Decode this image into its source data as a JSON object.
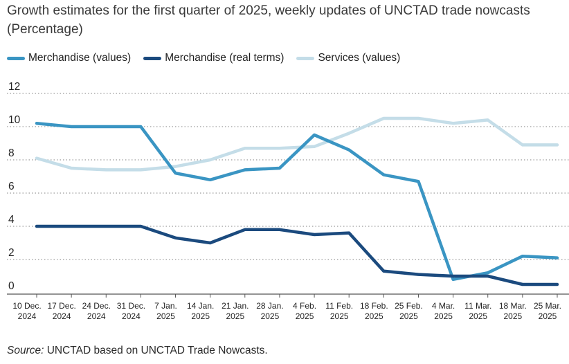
{
  "colors": {
    "merch_values": "#3a95c3",
    "merch_real": "#1b4a7e",
    "services": "#c4dde8",
    "grid": "#9a9a9a",
    "axis": "#555555",
    "text": "#222222"
  },
  "source": {
    "label": "Source:",
    "text": " UNCTAD based on UNCTAD Trade Nowcasts."
  },
  "chart_data": {
    "type": "line",
    "title": "Growth estimates for the first quarter of 2025, weekly updates of UNCTAD trade nowcasts (Percentage)",
    "categories": [
      [
        "10 Dec.",
        "2024"
      ],
      [
        "17 Dec.",
        "2024"
      ],
      [
        "24 Dec.",
        "2024"
      ],
      [
        "31 Dec.",
        "2024"
      ],
      [
        "7 Jan.",
        "2025"
      ],
      [
        "14 Jan.",
        "2025"
      ],
      [
        "21 Jan.",
        "2025"
      ],
      [
        "28 Jan.",
        "2025"
      ],
      [
        "4 Feb.",
        "2025"
      ],
      [
        "11 Feb.",
        "2025"
      ],
      [
        "18 Feb.",
        "2025"
      ],
      [
        "25 Feb.",
        "2025"
      ],
      [
        "4 Mar.",
        "2025"
      ],
      [
        "11 Mar.",
        "2025"
      ],
      [
        "18 Mar.",
        "2025"
      ],
      [
        "25 Mar.",
        "2025"
      ]
    ],
    "yticks": [
      0,
      2,
      4,
      6,
      8,
      10,
      12
    ],
    "ylim": [
      0,
      12
    ],
    "legend_position": "top-left",
    "grid": "horizontal-dotted",
    "series": [
      {
        "name": "Merchandise (values)",
        "color": "#3a95c3",
        "values": [
          10.2,
          10.0,
          10.0,
          10.0,
          7.2,
          6.8,
          7.4,
          7.5,
          9.5,
          8.6,
          7.1,
          6.7,
          0.8,
          1.2,
          2.2,
          2.1
        ]
      },
      {
        "name": "Merchandise (real terms)",
        "color": "#1b4a7e",
        "values": [
          4.0,
          4.0,
          4.0,
          4.0,
          3.3,
          3.0,
          3.8,
          3.8,
          3.5,
          3.6,
          1.3,
          1.1,
          1.0,
          1.0,
          0.5,
          0.5
        ]
      },
      {
        "name": "Services (values)",
        "color": "#c4dde8",
        "values": [
          8.1,
          7.5,
          7.4,
          7.4,
          7.6,
          8.0,
          8.7,
          8.7,
          8.8,
          9.6,
          10.5,
          10.5,
          10.2,
          10.4,
          8.9,
          8.9
        ]
      }
    ]
  }
}
